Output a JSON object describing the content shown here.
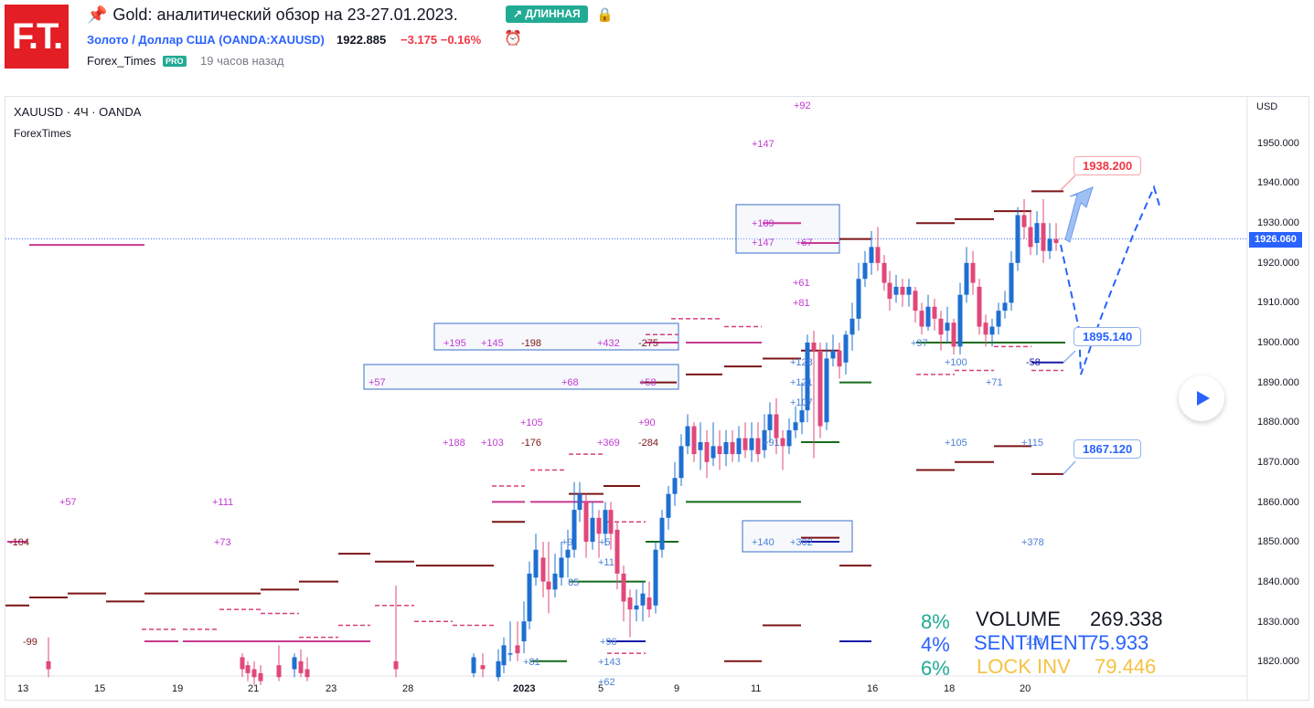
{
  "header": {
    "logo_text": "F.T.",
    "pin_icon": "pin-icon",
    "title": "Gold: аналитический обзор на 23-27.01.2023.",
    "direction_badge": "↗ ДЛИННАЯ",
    "lock_icon": "lock-icon",
    "symbol_link": "Золото / Доллар США (OANDA:XAUUSD)",
    "price": "1922.885",
    "change": "−3.175  −0.16%",
    "alarm_icon": "alarm-icon",
    "author": "Forex_Times",
    "pro_badge": "PRO",
    "published": "19 часов назад"
  },
  "chart": {
    "ohlc_title": "XAUUSD · 4Ч · OANDA",
    "study_title": "ForexTimes",
    "currency": "USD",
    "current_price": "1926.060",
    "y_ticks": [
      "1950.000",
      "1940.000",
      "1930.000",
      "1920.000",
      "1910.000",
      "1900.000",
      "1890.000",
      "1880.000",
      "1870.000",
      "1860.000",
      "1850.000",
      "1840.000",
      "1830.000",
      "1820.000"
    ],
    "x_ticks": [
      "13",
      "15",
      "19",
      "21",
      "23",
      "28",
      "2023",
      "5",
      "9",
      "11",
      "16",
      "18",
      "20"
    ],
    "level_labels": {
      "top": "1938.200",
      "mid": "1895.140",
      "low": "1867.120"
    },
    "stats": {
      "volume_pct": "8%",
      "volume_label": "VOLUME",
      "volume_value": "269.338",
      "sentiment_pct": "4%",
      "sentiment_label": "SENTIMENT",
      "sentiment_value": "75.933",
      "lockinv_pct": "6%",
      "lockinv_label": "LOCK INV",
      "lockinv_value": "79.446"
    },
    "annotations": [
      {
        "t": "+92"
      },
      {
        "t": "+147"
      },
      {
        "t": "+189"
      },
      {
        "t": "+147"
      },
      {
        "t": "+67"
      },
      {
        "t": "+61"
      },
      {
        "t": "+81"
      },
      {
        "t": "+195"
      },
      {
        "t": "+145"
      },
      {
        "t": "-198"
      },
      {
        "t": "+432"
      },
      {
        "t": "-275"
      },
      {
        "t": "+57"
      },
      {
        "t": "+68"
      },
      {
        "t": "+58"
      },
      {
        "t": "+105"
      },
      {
        "t": "+90"
      },
      {
        "t": "+188"
      },
      {
        "t": "+103"
      },
      {
        "t": "-176"
      },
      {
        "t": "+369"
      },
      {
        "t": "-284"
      },
      {
        "t": "+57"
      },
      {
        "t": "+111"
      },
      {
        "t": "-104"
      },
      {
        "t": "+73"
      },
      {
        "t": "-99"
      },
      {
        "t": "+128"
      },
      {
        "t": "+121"
      },
      {
        "t": "+107"
      },
      {
        "t": "+91"
      },
      {
        "t": "+97"
      },
      {
        "t": "+100"
      },
      {
        "t": "-58"
      },
      {
        "t": "+71"
      },
      {
        "t": "+105"
      },
      {
        "t": "+115"
      },
      {
        "t": "+140"
      },
      {
        "t": "+302"
      },
      {
        "t": "+378"
      },
      {
        "t": "+9"
      },
      {
        "t": "+5"
      },
      {
        "t": "+11"
      },
      {
        "t": "85"
      },
      {
        "t": "+96"
      },
      {
        "t": "+81"
      },
      {
        "t": "+143"
      },
      {
        "t": "+62"
      },
      {
        "t": "218"
      }
    ]
  }
}
